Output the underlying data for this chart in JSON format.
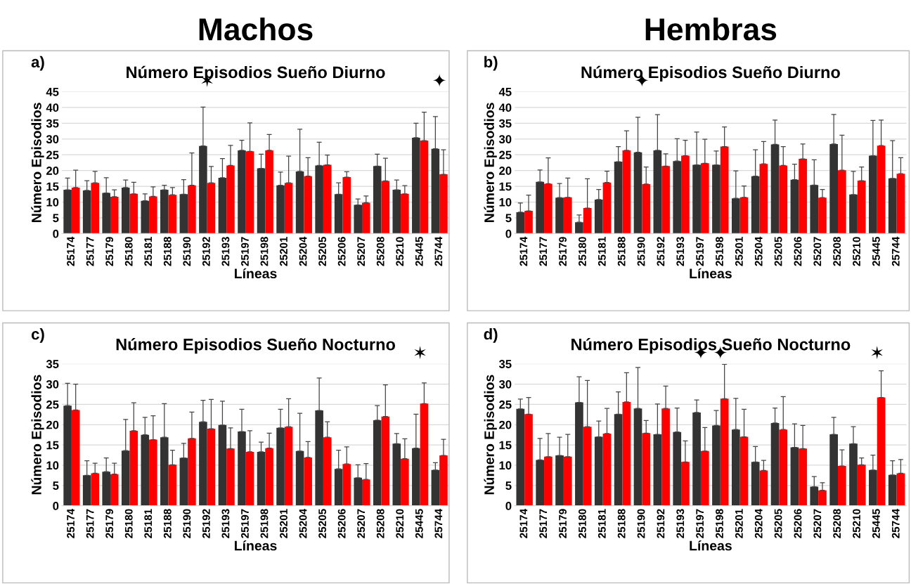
{
  "chart_data": [
    {
      "type": "bar",
      "title": "Número Episodios Sueño Diurno",
      "xlabel": "Líneas",
      "ylabel": "Número Episodios",
      "annotations": [
        "a)",
        "Machos",
        "✶",
        "✦"
      ],
      "categories": [
        "25174",
        "25177",
        "25179",
        "25180",
        "25181",
        "25188",
        "25190",
        "25192",
        "25193",
        "25197",
        "25198",
        "25201",
        "25204",
        "25205",
        "25206",
        "25207",
        "25208",
        "25210",
        "25445",
        "25744"
      ],
      "series": [
        {
          "color": "#333333",
          "values": [
            13.9,
            13.7,
            12.9,
            14.6,
            10.4,
            13.9,
            12.5,
            27.8,
            17.7,
            26.4,
            20.7,
            15.3,
            19.7,
            21.6,
            12.5,
            9.1,
            21.4,
            13.9,
            30.4,
            26.9
          ],
          "errors": [
            [
              13.9,
              17.6
            ],
            [
              13.7,
              16.8
            ],
            [
              12.9,
              17.7
            ],
            [
              14.6,
              17.0
            ],
            [
              10.4,
              12.6
            ],
            [
              13.9,
              15.3
            ],
            [
              12.5,
              17.1
            ],
            [
              27.8,
              40.1
            ],
            [
              17.7,
              23.8
            ],
            [
              26.4,
              29.6
            ],
            [
              20.7,
              25.2
            ],
            [
              15.3,
              19.5
            ],
            [
              19.7,
              33.1
            ],
            [
              21.6,
              29.0
            ],
            [
              12.5,
              16.1
            ],
            [
              9.1,
              11.0
            ],
            [
              21.4,
              25.2
            ],
            [
              13.9,
              17.0
            ],
            [
              30.4,
              35.0
            ],
            [
              26.9,
              37.1
            ]
          ]
        },
        {
          "color": "#ff0000",
          "values": [
            14.6,
            16.1,
            11.7,
            12.6,
            11.8,
            12.3,
            15.3,
            16.1,
            21.6,
            26.1,
            26.4,
            16.1,
            18.2,
            21.8,
            17.9,
            9.8,
            16.7,
            12.6,
            29.5,
            18.8
          ],
          "errors": [
            [
              14.6,
              20.1
            ],
            [
              16.1,
              19.7
            ],
            [
              11.7,
              13.9
            ],
            [
              12.6,
              16.3
            ],
            [
              11.8,
              14.8
            ],
            [
              12.3,
              14.6
            ],
            [
              15.3,
              25.6
            ],
            [
              16.1,
              21.3
            ],
            [
              21.6,
              28.0
            ],
            [
              26.1,
              35.1
            ],
            [
              26.4,
              31.4
            ],
            [
              16.1,
              24.6
            ],
            [
              18.2,
              24.1
            ],
            [
              21.8,
              24.9
            ],
            [
              17.9,
              19.6
            ],
            [
              9.8,
              11.9
            ],
            [
              16.7,
              23.9
            ],
            [
              12.6,
              15.2
            ],
            [
              29.5,
              38.5
            ],
            [
              18.8,
              26.6
            ]
          ]
        }
      ],
      "ylim": [
        0,
        45
      ],
      "yticks": [
        0,
        5,
        10,
        15,
        20,
        25,
        30,
        35,
        40,
        45
      ],
      "grid": "y"
    },
    {
      "type": "bar",
      "title": "Número Episodios Sueño Diurno",
      "xlabel": "Líneas",
      "ylabel": "Número Episodios",
      "annotations": [
        "b)",
        "Hembras",
        "✦"
      ],
      "categories": [
        "25174",
        "25177",
        "25179",
        "25180",
        "25181",
        "25188",
        "25190",
        "25192",
        "25193",
        "25197",
        "25198",
        "25201",
        "25204",
        "25205",
        "25206",
        "25207",
        "25208",
        "25210",
        "25445",
        "25744"
      ],
      "series": [
        {
          "color": "#333333",
          "values": [
            6.8,
            16.4,
            11.4,
            3.6,
            10.8,
            22.8,
            25.8,
            26.4,
            23.0,
            21.8,
            21.8,
            11.2,
            18.2,
            28.3,
            17.1,
            15.4,
            28.4,
            12.4,
            24.7,
            17.5
          ],
          "errors": [
            [
              6.8,
              9.7
            ],
            [
              16.4,
              20.2
            ],
            [
              11.4,
              15.9
            ],
            [
              3.6,
              5.9
            ],
            [
              10.8,
              14.0
            ],
            [
              22.8,
              27.6
            ],
            [
              25.8,
              36.9
            ],
            [
              26.4,
              37.7
            ],
            [
              23.0,
              30.1
            ],
            [
              21.8,
              32.2
            ],
            [
              21.8,
              26.2
            ],
            [
              11.2,
              19.9
            ],
            [
              18.2,
              26.6
            ],
            [
              28.3,
              36.0
            ],
            [
              17.1,
              22.0
            ],
            [
              15.4,
              23.4
            ],
            [
              28.4,
              37.8
            ],
            [
              12.4,
              19.7
            ],
            [
              24.7,
              35.9
            ],
            [
              17.5,
              29.5
            ]
          ]
        },
        {
          "color": "#ff0000",
          "values": [
            7.2,
            15.8,
            11.5,
            8.1,
            16.2,
            26.4,
            15.7,
            21.4,
            24.7,
            22.3,
            27.6,
            11.5,
            22.1,
            21.6,
            23.7,
            11.4,
            20.1,
            16.8,
            27.9,
            19.0
          ],
          "errors": [
            [
              7.2,
              12.2
            ],
            [
              15.8,
              24.0
            ],
            [
              11.5,
              17.6
            ],
            [
              8.1,
              17.4
            ],
            [
              16.2,
              19.8
            ],
            [
              26.4,
              32.6
            ],
            [
              15.7,
              21.1
            ],
            [
              21.4,
              25.3
            ],
            [
              24.7,
              29.6
            ],
            [
              22.3,
              29.9
            ],
            [
              27.6,
              33.8
            ],
            [
              11.5,
              15.1
            ],
            [
              22.1,
              29.2
            ],
            [
              21.6,
              27.6
            ],
            [
              23.7,
              28.4
            ],
            [
              11.4,
              14.0
            ],
            [
              20.1,
              31.2
            ],
            [
              16.8,
              21.1
            ],
            [
              27.9,
              36.0
            ],
            [
              19.0,
              24.1
            ]
          ]
        }
      ],
      "ylim": [
        0,
        45
      ],
      "yticks": [
        0,
        5,
        10,
        15,
        20,
        25,
        30,
        35,
        40,
        45
      ],
      "grid": "y"
    },
    {
      "type": "bar",
      "title": "Número Episodios Sueño Nocturno",
      "xlabel": "Líneas",
      "ylabel": "Número Episodios",
      "annotations": [
        "c)",
        "✶"
      ],
      "categories": [
        "25174",
        "25177",
        "25179",
        "25180",
        "25181",
        "25188",
        "25190",
        "25192",
        "25193",
        "25197",
        "25198",
        "25201",
        "25204",
        "25205",
        "25206",
        "25207",
        "25208",
        "25210",
        "25445",
        "25744"
      ],
      "series": [
        {
          "color": "#333333",
          "values": [
            24.7,
            7.5,
            8.4,
            13.6,
            17.5,
            16.9,
            11.8,
            20.7,
            19.9,
            18.3,
            13.3,
            19.2,
            13.5,
            23.5,
            9.1,
            6.9,
            21.1,
            15.3,
            14.2,
            8.8
          ],
          "errors": [
            [
              24.7,
              30.2
            ],
            [
              7.5,
              11.1
            ],
            [
              8.4,
              11.8
            ],
            [
              13.6,
              21.3
            ],
            [
              17.5,
              21.8
            ],
            [
              16.9,
              25.2
            ],
            [
              11.8,
              15.4
            ],
            [
              20.7,
              26.0
            ],
            [
              19.9,
              25.8
            ],
            [
              18.3,
              23.8
            ],
            [
              13.3,
              15.7
            ],
            [
              19.2,
              23.8
            ],
            [
              13.5,
              22.8
            ],
            [
              23.5,
              31.5
            ],
            [
              9.1,
              13.7
            ],
            [
              6.9,
              10.1
            ],
            [
              21.1,
              24.7
            ],
            [
              15.3,
              17.8
            ],
            [
              14.2,
              22.6
            ],
            [
              8.8,
              10.6
            ]
          ]
        },
        {
          "color": "#ff0000",
          "values": [
            23.6,
            8.0,
            7.8,
            18.5,
            16.3,
            10.1,
            16.6,
            19.0,
            14.1,
            13.3,
            14.2,
            19.5,
            11.9,
            16.9,
            10.3,
            6.5,
            22.0,
            11.6,
            25.2,
            12.4
          ],
          "errors": [
            [
              23.6,
              30.0
            ],
            [
              8.0,
              10.5
            ],
            [
              7.8,
              10.5
            ],
            [
              18.5,
              25.4
            ],
            [
              16.3,
              22.2
            ],
            [
              10.1,
              13.7
            ],
            [
              16.6,
              23.1
            ],
            [
              19.0,
              26.2
            ],
            [
              14.1,
              19.2
            ],
            [
              13.3,
              18.5
            ],
            [
              14.2,
              17.9
            ],
            [
              19.5,
              26.4
            ],
            [
              11.9,
              15.8
            ],
            [
              16.9,
              20.7
            ],
            [
              10.3,
              14.5
            ],
            [
              6.5,
              10.4
            ],
            [
              22.0,
              29.8
            ],
            [
              11.6,
              16.5
            ],
            [
              25.2,
              30.3
            ],
            [
              12.4,
              16.4
            ]
          ]
        }
      ],
      "ylim": [
        0,
        35
      ],
      "yticks": [
        0,
        5,
        10,
        15,
        20,
        25,
        30,
        35
      ],
      "grid": "y"
    },
    {
      "type": "bar",
      "title": "Número Episodios Sueño Nocturno",
      "xlabel": "Líneas",
      "ylabel": "Número Episodios",
      "annotations": [
        "d)",
        "✦",
        "✦",
        "✶"
      ],
      "categories": [
        "25174",
        "25177",
        "25179",
        "25180",
        "25181",
        "25188",
        "25190",
        "25192",
        "25193",
        "25197",
        "25198",
        "25201",
        "25204",
        "25205",
        "25206",
        "25207",
        "25208",
        "25210",
        "25445",
        "25744"
      ],
      "series": [
        {
          "color": "#333333",
          "values": [
            23.9,
            11.3,
            12.4,
            25.5,
            17.0,
            22.6,
            24.0,
            17.6,
            18.2,
            23.0,
            19.8,
            18.8,
            10.8,
            20.4,
            14.4,
            4.7,
            17.6,
            15.3,
            8.8,
            7.6
          ],
          "errors": [
            [
              23.9,
              26.3
            ],
            [
              11.3,
              16.6
            ],
            [
              12.4,
              16.9
            ],
            [
              25.5,
              31.8
            ],
            [
              17.0,
              20.9
            ],
            [
              22.6,
              28.1
            ],
            [
              24.0,
              34.1
            ],
            [
              17.6,
              25.1
            ],
            [
              18.2,
              24.1
            ],
            [
              23.0,
              26.1
            ],
            [
              19.8,
              23.5
            ],
            [
              18.8,
              26.5
            ],
            [
              10.8,
              14.6
            ],
            [
              20.4,
              24.1
            ],
            [
              14.4,
              20.2
            ],
            [
              4.7,
              7.2
            ],
            [
              17.6,
              21.8
            ],
            [
              15.3,
              19.5
            ],
            [
              8.8,
              12.5
            ],
            [
              7.6,
              11.1
            ]
          ]
        },
        {
          "color": "#ff0000",
          "values": [
            22.6,
            12.1,
            12.1,
            19.5,
            17.8,
            25.6,
            17.9,
            24.0,
            10.8,
            13.5,
            26.4,
            17.0,
            8.7,
            18.8,
            14.1,
            3.8,
            9.8,
            10.1,
            26.7,
            8.0
          ],
          "errors": [
            [
              22.6,
              26.7
            ],
            [
              12.1,
              17.8
            ],
            [
              12.1,
              17.6
            ],
            [
              19.5,
              30.9
            ],
            [
              17.8,
              24.0
            ],
            [
              25.6,
              32.8
            ],
            [
              17.9,
              21.0
            ],
            [
              24.0,
              29.5
            ],
            [
              10.8,
              16.0
            ],
            [
              13.5,
              19.3
            ],
            [
              26.4,
              34.9
            ],
            [
              17.0,
              23.8
            ],
            [
              8.7,
              11.2
            ],
            [
              18.8,
              26.9
            ],
            [
              14.1,
              19.8
            ],
            [
              3.8,
              5.7
            ],
            [
              9.8,
              13.8
            ],
            [
              10.1,
              11.8
            ],
            [
              26.7,
              33.3
            ],
            [
              8.0,
              11.4
            ]
          ]
        }
      ],
      "ylim": [
        0,
        35
      ],
      "yticks": [
        0,
        5,
        10,
        15,
        20,
        25,
        30,
        35
      ],
      "grid": "y"
    }
  ]
}
